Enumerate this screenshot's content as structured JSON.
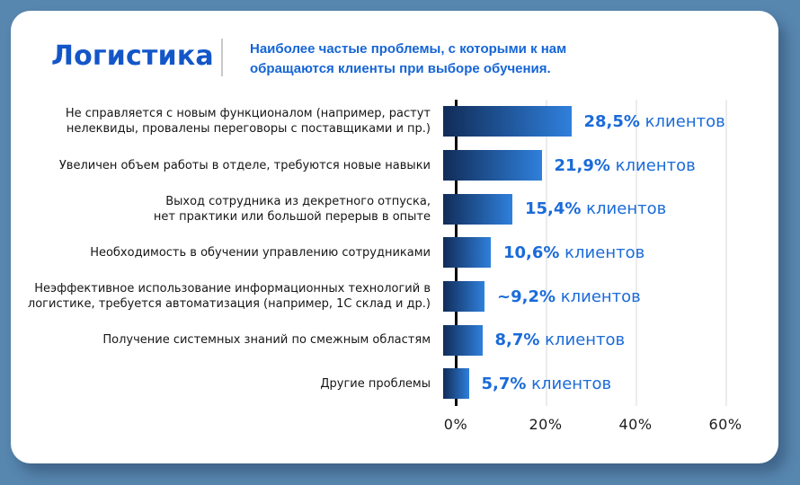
{
  "header": {
    "title": "Логистика",
    "subtitle_line1": "Наиболее частые проблемы, с которыми к нам",
    "subtitle_line2": "обращаются клиенты при выборе обучения."
  },
  "chart_data": {
    "type": "bar",
    "orientation": "horizontal",
    "title": "Наиболее частые проблемы, с которыми к нам обращаются клиенты при выборе обучения.",
    "categories": [
      [
        "Не справляется с новым функционалом (например, растут",
        "нелеквиды, провалены переговоры с поставщиками и пр.)"
      ],
      [
        "Увеличен объем работы в отделе, требуются новые навыки"
      ],
      [
        "Выход сотрудника из декретного отпуска,",
        "нет практики или большой перерыв в опыте"
      ],
      [
        "Необходимость в обучении управлению сотрудниками"
      ],
      [
        "Неэффективное использование информационных технологий в",
        "логистике, требуется автоматизация (например, 1С склад и др.)"
      ],
      [
        "Получение системных знаний по смежным областям"
      ],
      [
        "Другие проблемы"
      ]
    ],
    "values": [
      28.5,
      21.9,
      15.4,
      10.6,
      9.2,
      8.7,
      5.7
    ],
    "value_labels": [
      "28,5%",
      "21,9%",
      "15,4%",
      "10,6%",
      "~9,2%",
      "8,7%",
      "5,7%"
    ],
    "value_suffix": "клиентов",
    "x_ticks": [
      "0%",
      "20%",
      "40%",
      "60%"
    ],
    "x_tick_values": [
      0,
      20,
      40,
      60
    ],
    "xlim": [
      0,
      70
    ],
    "grid": true,
    "legend": "none"
  },
  "colors": {
    "background": "#5786AE",
    "card": "#ffffff",
    "title": "#1356C8",
    "subtitle": "#1565D6",
    "value_text": "#1A6BD9",
    "category_text": "#161616",
    "bar_gradient_start": "#112C58",
    "bar_gradient_end": "#2F80DC",
    "gridline": "#ececec",
    "axis": "#0b0b0b"
  }
}
